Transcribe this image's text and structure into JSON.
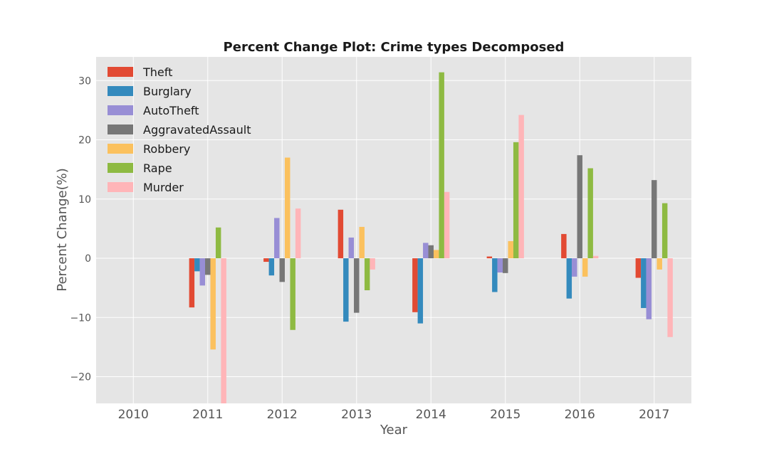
{
  "chart_data": {
    "type": "bar",
    "title": "Percent Change Plot: Crime types Decomposed",
    "xlabel": "Year",
    "ylabel": "Percent Change(%)",
    "categories": [
      "2010",
      "2011",
      "2012",
      "2013",
      "2014",
      "2015",
      "2016",
      "2017"
    ],
    "ylim": [
      -24.5,
      34
    ],
    "yticks": [
      -20,
      -10,
      0,
      10,
      20,
      30
    ],
    "ytick_labels": [
      "−20",
      "−10",
      "0",
      "10",
      "20",
      "30"
    ],
    "grid": true,
    "legend_position": "top-left",
    "series": [
      {
        "name": "Theft",
        "color": "#E24A33",
        "values": [
          null,
          -8.3,
          -0.6,
          8.2,
          -9.1,
          0.3,
          4.1,
          -3.3
        ]
      },
      {
        "name": "Burglary",
        "color": "#348ABD",
        "values": [
          null,
          -2.2,
          -2.9,
          -10.7,
          -11.0,
          -5.7,
          -6.8,
          -8.4
        ]
      },
      {
        "name": "AutoTheft",
        "color": "#988ED5",
        "values": [
          null,
          -4.6,
          6.8,
          3.5,
          2.6,
          -2.4,
          -3.1,
          -10.3
        ]
      },
      {
        "name": "AggravatedAssault",
        "color": "#777777",
        "values": [
          null,
          -2.8,
          -4.0,
          -9.2,
          2.2,
          -2.5,
          17.4,
          13.2
        ]
      },
      {
        "name": "Robbery",
        "color": "#FBC15E",
        "values": [
          null,
          -15.4,
          17.0,
          5.3,
          1.4,
          2.9,
          -3.1,
          -1.9
        ]
      },
      {
        "name": "Rape",
        "color": "#8EBA42",
        "values": [
          null,
          5.2,
          -12.1,
          -5.4,
          31.4,
          19.6,
          15.2,
          9.3
        ]
      },
      {
        "name": "Murder",
        "color": "#FFB5B8",
        "values": [
          null,
          -24.5,
          8.4,
          -1.9,
          11.2,
          24.2,
          0.4,
          -13.3
        ]
      }
    ]
  }
}
